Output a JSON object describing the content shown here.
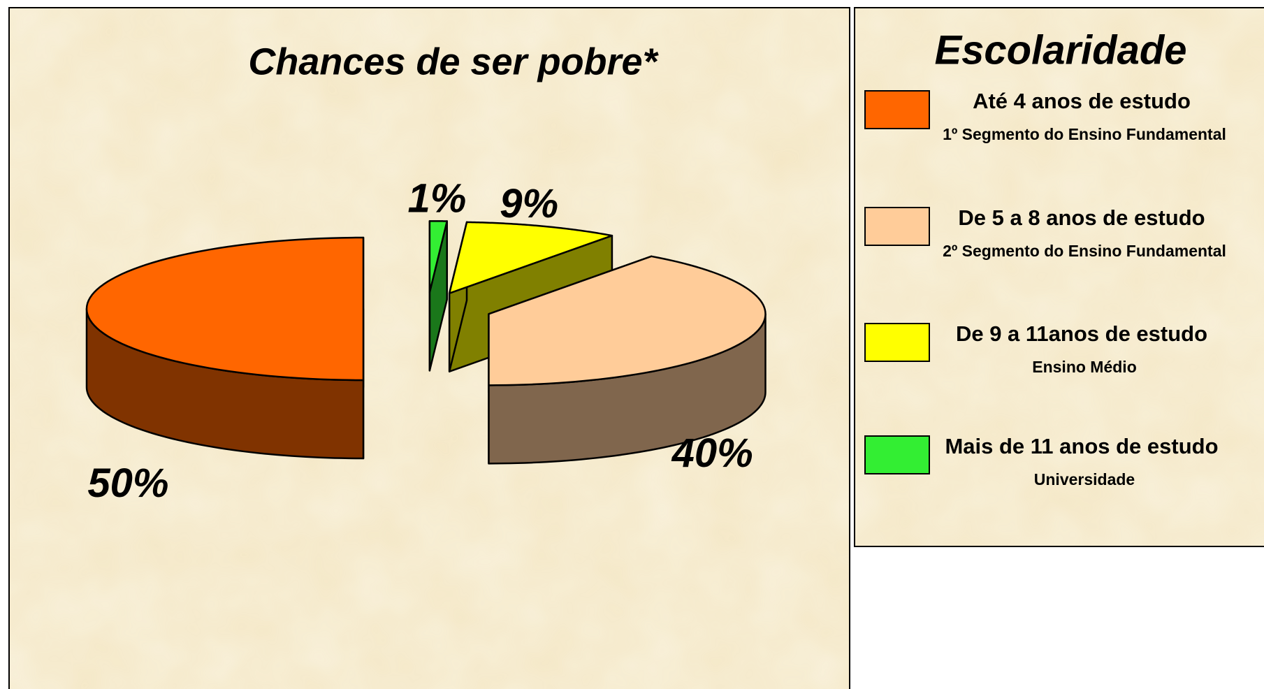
{
  "chart_data": {
    "type": "pie",
    "title": "Chances de ser pobre*",
    "legend_title": "Escolaridade",
    "categories": [
      "Até 4 anos de estudo",
      "De 5 a 8 anos de estudo",
      "De 9 a 11anos de estudo",
      "Mais de 11 anos de estudo"
    ],
    "category_notes": [
      "1º Segmento do Ensino Fundamental",
      "2º Segmento do Ensino Fundamental",
      "Ensino Médio",
      "Universidade"
    ],
    "values": [
      50,
      40,
      9,
      1
    ],
    "value_labels": [
      "50%",
      "40%",
      "9%",
      "1%"
    ],
    "colors": [
      "#ff6600",
      "#ffcc99",
      "#ffff00",
      "#33ee33"
    ]
  }
}
